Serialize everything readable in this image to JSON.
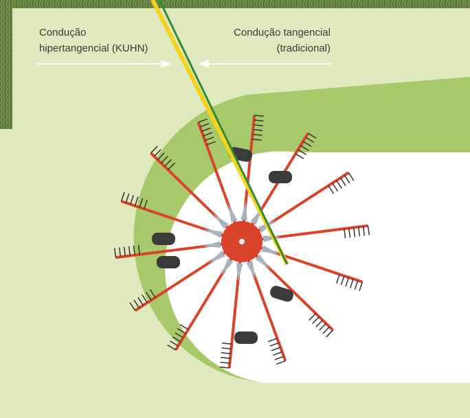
{
  "labels": {
    "left": [
      "Condução",
      "hipertangencial (KUHN)"
    ],
    "right": [
      "Condução tangencial",
      "(tradicional)"
    ]
  }
}
